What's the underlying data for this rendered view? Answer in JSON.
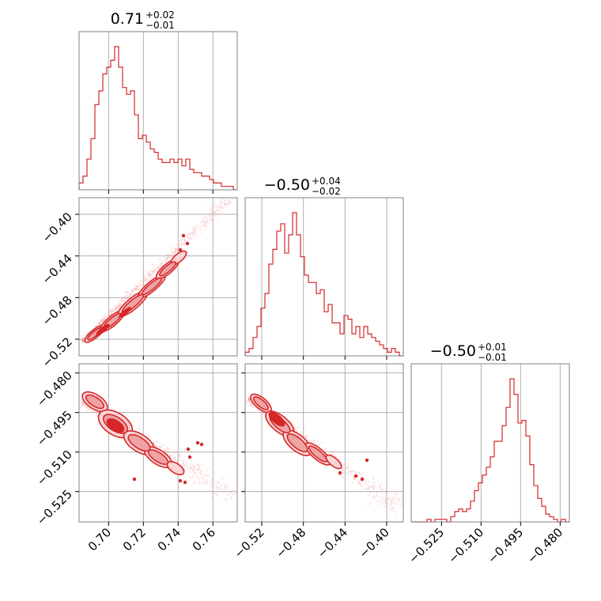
{
  "colors": {
    "accent": "#d62728",
    "fill_light": "#f9d5d6",
    "fill_mid": "#eea3a5",
    "dot": "#ec8a8c"
  },
  "chart_data": {
    "type": "corner",
    "parameters": [
      {
        "title_main": "0.71",
        "title_plus": "+0.02",
        "title_minus": "−0.01",
        "range": [
          0.683,
          0.774
        ],
        "ticks": [
          0.7,
          0.72,
          0.74,
          0.76
        ],
        "tick_labels": [
          "0.70",
          "0.72",
          "0.74",
          "0.76"
        ],
        "hist": [
          2,
          4,
          9,
          15,
          25,
          29,
          34,
          36,
          38,
          42,
          36,
          30,
          28,
          29,
          22,
          15,
          16,
          14,
          12,
          11,
          9,
          8,
          8,
          9,
          8,
          9,
          7,
          9,
          6,
          5,
          5,
          4,
          4,
          3,
          2,
          2,
          1,
          1,
          1,
          0
        ]
      },
      {
        "title_main": "−0.50",
        "title_plus": "+0.04",
        "title_minus": "−0.02",
        "range": [
          -0.536,
          -0.384
        ],
        "ticks": [
          -0.52,
          -0.48,
          -0.44,
          -0.4
        ],
        "tick_labels": [
          "−0.52",
          "−0.48",
          "−0.44",
          "−0.40"
        ],
        "hist": [
          1,
          2,
          5,
          8,
          13,
          17,
          25,
          29,
          34,
          36,
          28,
          33,
          39,
          33,
          27,
          22,
          20,
          20,
          17,
          18,
          12,
          14,
          9,
          9,
          6,
          11,
          10,
          6,
          8,
          5,
          8,
          6,
          5,
          4,
          3,
          2,
          1,
          2,
          1,
          0
        ]
      },
      {
        "title_main": "−0.50",
        "title_plus": "+0.01",
        "title_minus": "−0.01",
        "range": [
          -0.5365,
          -0.4765
        ],
        "ticks": [
          -0.525,
          -0.51,
          -0.495,
          -0.48
        ],
        "tick_labels": [
          "−0.525",
          "−0.510",
          "−0.495",
          "−0.480"
        ],
        "hist": [
          0,
          0,
          0,
          0,
          1,
          0,
          1,
          1,
          1,
          0,
          2,
          4,
          5,
          4,
          5,
          8,
          12,
          15,
          18,
          21,
          25,
          31,
          31,
          37,
          44,
          55,
          49,
          38,
          39,
          33,
          22,
          14,
          9,
          6,
          3,
          2,
          1,
          0,
          1,
          0
        ]
      }
    ],
    "pairs": [
      {
        "x_param": 0,
        "y_param": 1,
        "relation": "positive-linear"
      },
      {
        "x_param": 0,
        "y_param": 2,
        "relation": "negative-linear"
      },
      {
        "x_param": 1,
        "y_param": 2,
        "relation": "negative-linear"
      }
    ],
    "y_axis_ticks": {
      "row1": {
        "ticks": [
          -0.52,
          -0.48,
          -0.44,
          -0.4
        ],
        "tick_labels": [
          "−0.52",
          "−0.48",
          "−0.44",
          "−0.40"
        ]
      },
      "row2": {
        "ticks": [
          -0.525,
          -0.51,
          -0.495,
          -0.48
        ],
        "tick_labels": [
          "−0.525",
          "−0.510",
          "−0.495",
          "−0.480"
        ]
      }
    },
    "grid": true
  }
}
